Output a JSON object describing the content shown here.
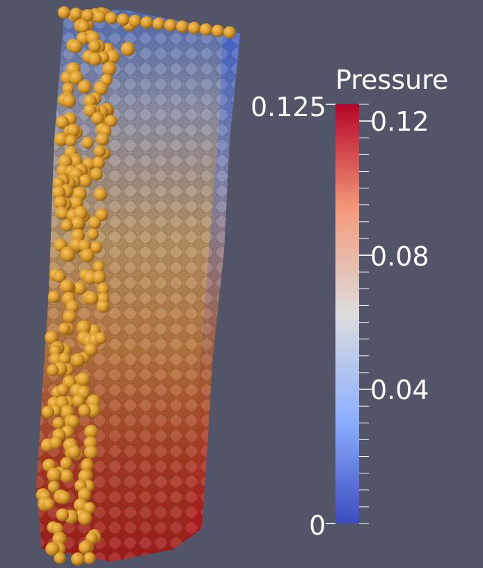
{
  "legend": {
    "title": "Pressure",
    "range_max_label": "0.125",
    "range_min_label": "0",
    "range": [
      0,
      0.125
    ],
    "tick_labels": [
      "0.12",
      "0.08",
      "0.04"
    ],
    "ticks": [
      0.12,
      0.08,
      0.04
    ],
    "colormap_stops": [
      "#3b4cc0",
      "#8db0fe",
      "#dddddd",
      "#f49a7b",
      "#b40426"
    ]
  },
  "colors": {
    "background": "#525468",
    "particle": "#d99a2b"
  }
}
